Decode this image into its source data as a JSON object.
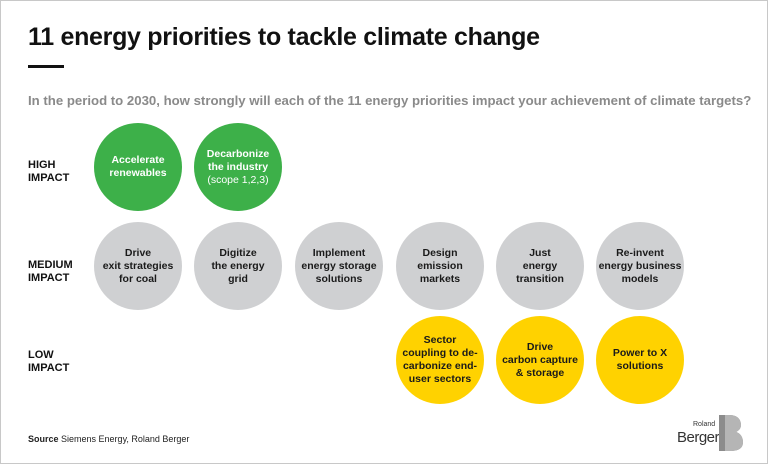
{
  "title": "11 energy priorities to tackle climate change",
  "subtitle": "In the period to 2030, how strongly will each of the 11 energy priorities impact your achievement of climate targets?",
  "rows": {
    "high": [
      "HIGH",
      "IMPACT"
    ],
    "medium": [
      "MEDIUM",
      "IMPACT"
    ],
    "low": [
      "LOW",
      "IMPACT"
    ]
  },
  "priorities": {
    "high": [
      {
        "lines": [
          "Accelerate",
          "renewables"
        ]
      },
      {
        "lines": [
          "Decarbonize",
          "the industry"
        ],
        "note": "(scope 1,2,3)"
      }
    ],
    "medium": [
      {
        "lines": [
          "Drive",
          "exit strategies",
          "for coal"
        ]
      },
      {
        "lines": [
          "Digitize",
          "the energy",
          "grid"
        ]
      },
      {
        "lines": [
          "Implement",
          "energy storage",
          "solutions"
        ]
      },
      {
        "lines": [
          "Design",
          "emission",
          "markets"
        ]
      },
      {
        "lines": [
          "Just",
          "energy",
          "transition"
        ]
      },
      {
        "lines": [
          "Re-invent",
          "energy business",
          "models"
        ]
      }
    ],
    "low": [
      {
        "lines": [
          "Sector",
          "coupling to de-",
          "carbonize end-",
          "user sectors"
        ]
      },
      {
        "lines": [
          "Drive",
          "carbon capture",
          "& storage"
        ]
      },
      {
        "lines": [
          "Power to X",
          "solutions"
        ]
      }
    ]
  },
  "source": {
    "label": "Source",
    "text": "Siemens Energy, Roland Berger"
  },
  "logo": {
    "roland": "Roland",
    "berger": "Berger"
  },
  "colors": {
    "high": "#3db049",
    "medium": "#cfd0d2",
    "low": "#ffd200"
  }
}
